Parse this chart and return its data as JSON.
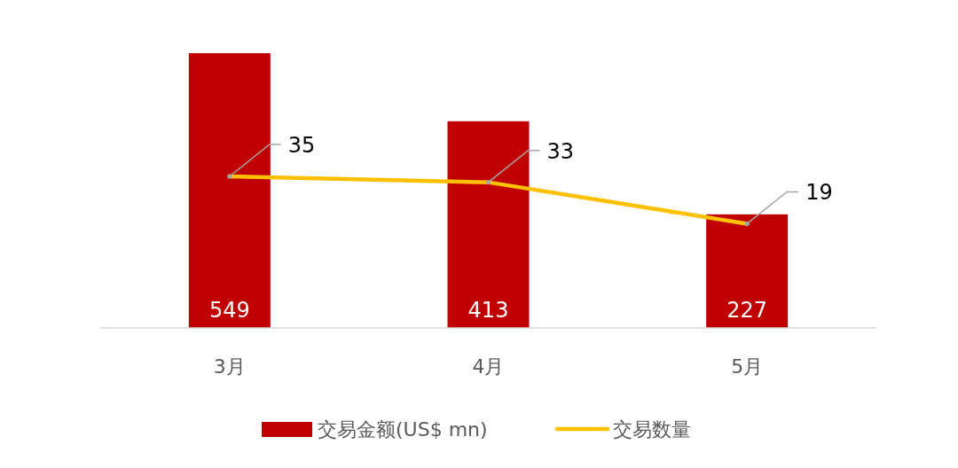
{
  "chart_data": {
    "type": "bar",
    "categories": [
      "3月",
      "4月",
      "5月"
    ],
    "series": [
      {
        "name": "交易金额(US$ mn)",
        "color": "#c00000",
        "values": [
          549,
          413,
          227
        ]
      },
      {
        "name": "交易数量",
        "type": "line",
        "axis": "y2",
        "color": "#ffc000",
        "values": [
          35,
          33,
          19
        ]
      }
    ],
    "data_labels": true,
    "legend": "bottom"
  }
}
